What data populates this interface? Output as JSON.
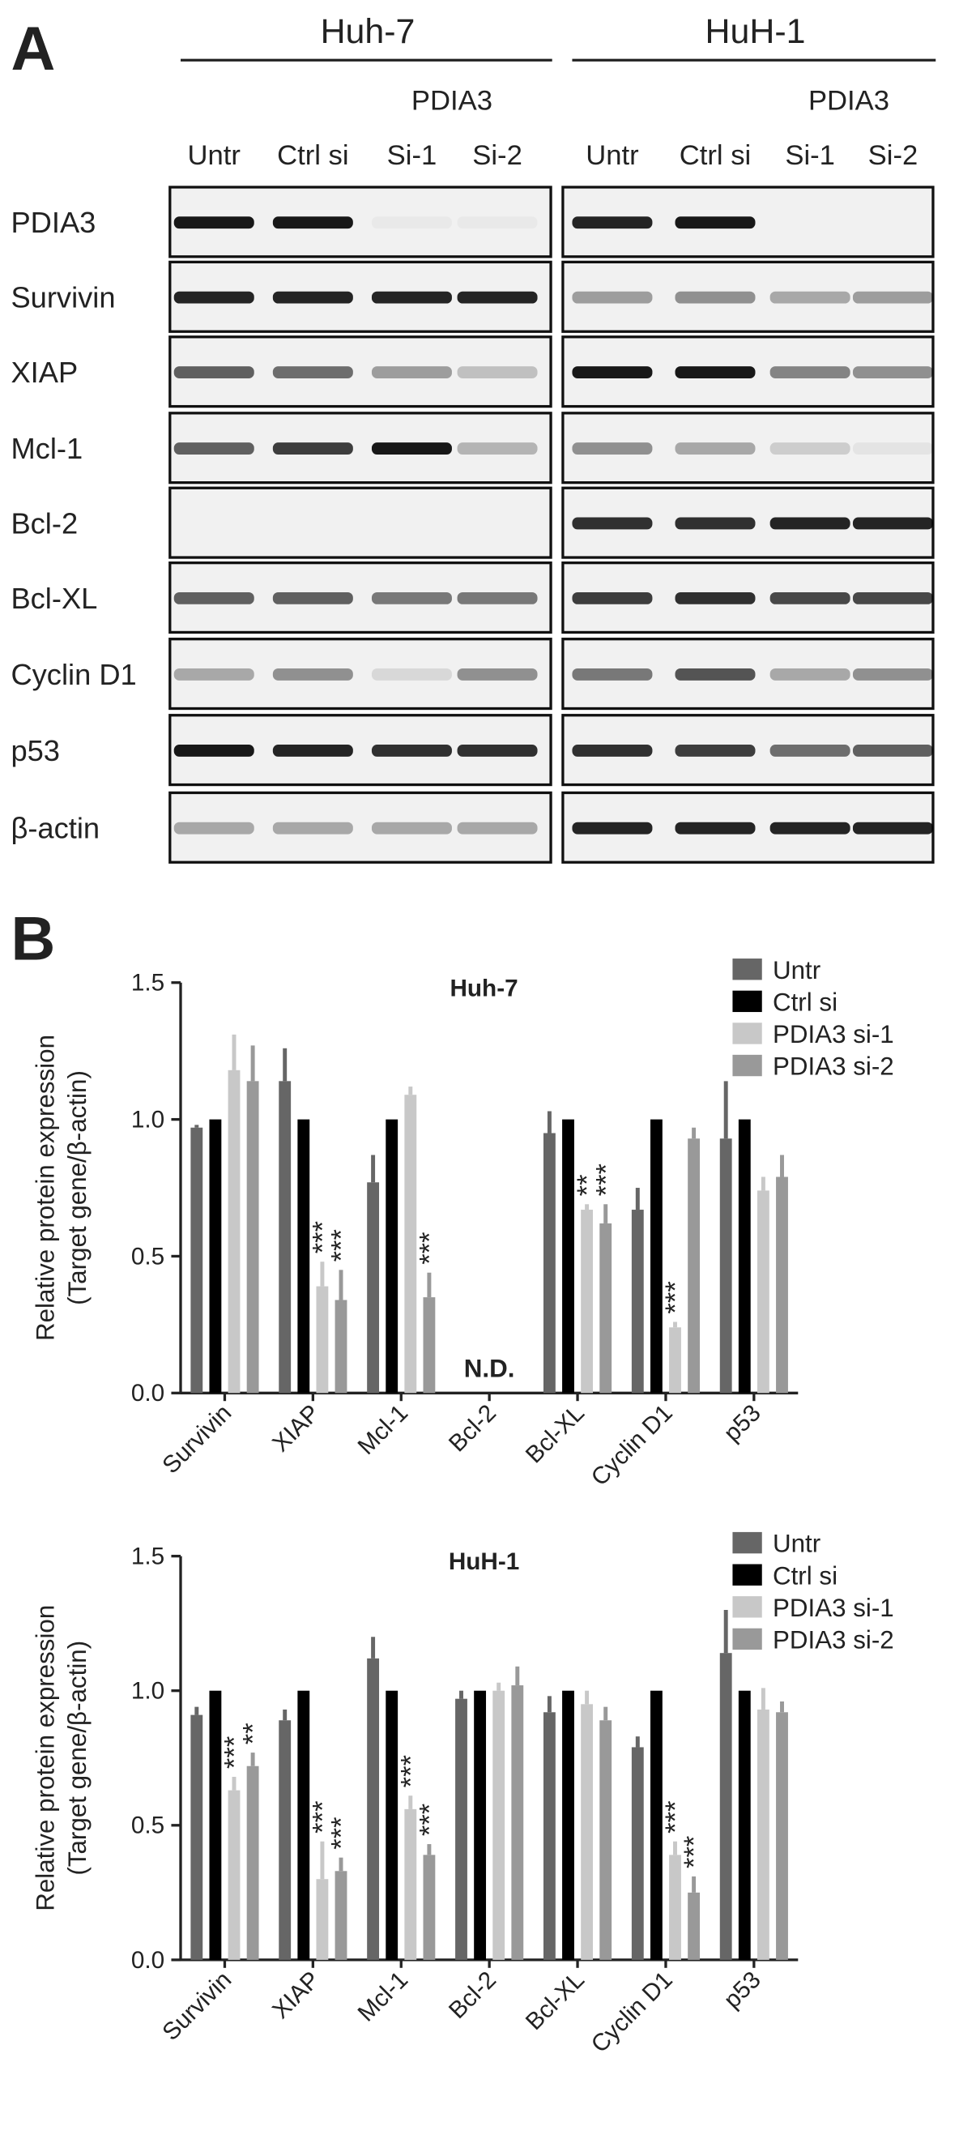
{
  "panel_a": {
    "label": "A",
    "cell_lines": [
      {
        "name": "Huh-7",
        "treatment": "PDIA3",
        "lanes": [
          "Untr",
          "Ctrl si",
          "Si-1",
          "Si-2"
        ]
      },
      {
        "name": "HuH-1",
        "treatment": "PDIA3",
        "lanes": [
          "Untr",
          "Ctrl si",
          "Si-1",
          "Si-2"
        ]
      }
    ],
    "proteins": [
      "PDIA3",
      "Survivin",
      "XIAP",
      "Mcl-1",
      "Bcl-2",
      "Bcl-XL",
      "Cyclin D1",
      "p53",
      "β-actin"
    ]
  },
  "panel_b_label": "B",
  "chart_data": [
    {
      "type": "bar",
      "title": "Huh-7",
      "y_label": [
        "Relative protein expression",
        "(Target gene/β-actin)"
      ],
      "categories": [
        "Survivin",
        "XIAP",
        "Mcl-1",
        "Bcl-2",
        "Bcl-XL",
        "Cyclin D1",
        "p53"
      ],
      "series": [
        {
          "name": "Untr",
          "color": "#666666",
          "values": [
            0.97,
            1.14,
            0.77,
            null,
            0.95,
            0.67,
            0.93
          ],
          "errors": [
            0.01,
            0.12,
            0.1,
            null,
            0.08,
            0.08,
            0.21
          ]
        },
        {
          "name": "Ctrl si",
          "color": "#000000",
          "values": [
            1,
            1,
            1,
            null,
            1,
            1,
            1
          ]
        },
        {
          "name": "PDIA3 si-1",
          "color": "#c8c8c8",
          "values": [
            1.18,
            0.39,
            1.09,
            null,
            0.67,
            0.24,
            0.74
          ],
          "errors": [
            0.13,
            0.09,
            0.03,
            null,
            0.02,
            0.02,
            0.05
          ],
          "significance": [
            null,
            "***",
            null,
            null,
            "**",
            "***",
            null
          ]
        },
        {
          "name": "PDIA3 si-2",
          "color": "#999999",
          "values": [
            1.14,
            0.34,
            0.35,
            null,
            0.62,
            0.93,
            0.79
          ],
          "errors": [
            0.13,
            0.11,
            0.09,
            null,
            0.07,
            0.04,
            0.08
          ],
          "significance": [
            null,
            "***",
            "***",
            null,
            "***",
            null,
            null
          ]
        }
      ],
      "annotations": [
        {
          "text": "N.D.",
          "category": "Bcl-2"
        }
      ],
      "ylim": [
        0,
        1.5
      ],
      "yticks": [
        {
          "value": 0,
          "label": "0.0"
        },
        0.5,
        {
          "value": 1,
          "label": "1.0"
        },
        1.5
      ],
      "legend": "top-right"
    },
    {
      "type": "bar",
      "title": "HuH-1",
      "y_label": [
        "Relative protein expression",
        "(Target gene/β-actin)"
      ],
      "categories": [
        "Survivin",
        "XIAP",
        "Mcl-1",
        "Bcl-2",
        "Bcl-XL",
        "Cyclin D1",
        "p53"
      ],
      "series": [
        {
          "name": "Untr",
          "color": "#666666",
          "values": [
            0.91,
            0.89,
            1.12,
            0.97,
            0.92,
            0.79,
            1.14
          ],
          "errors": [
            0.03,
            0.04,
            0.08,
            0.03,
            0.06,
            0.04,
            0.16
          ]
        },
        {
          "name": "Ctrl si",
          "color": "#000000",
          "values": [
            1,
            1,
            1,
            1,
            1,
            1,
            1
          ]
        },
        {
          "name": "PDIA3 si-1",
          "color": "#c8c8c8",
          "values": [
            0.63,
            0.3,
            0.56,
            1.0,
            0.95,
            0.39,
            0.93
          ],
          "errors": [
            0.05,
            0.14,
            0.05,
            0.03,
            0.05,
            0.05,
            0.08
          ],
          "significance": [
            "***",
            "***",
            "***",
            null,
            null,
            "***",
            null
          ]
        },
        {
          "name": "PDIA3 si-2",
          "color": "#999999",
          "values": [
            0.72,
            0.33,
            0.39,
            1.02,
            0.89,
            0.25,
            0.92
          ],
          "errors": [
            0.05,
            0.05,
            0.04,
            0.07,
            0.05,
            0.06,
            0.04
          ],
          "significance": [
            "**",
            "***",
            "***",
            null,
            null,
            "***",
            null
          ]
        }
      ],
      "ylim": [
        0,
        1.5
      ],
      "yticks": [
        {
          "value": 0,
          "label": "0.0"
        },
        0.5,
        {
          "value": 1,
          "label": "1.0"
        },
        1.5
      ],
      "legend": "top-right"
    }
  ]
}
